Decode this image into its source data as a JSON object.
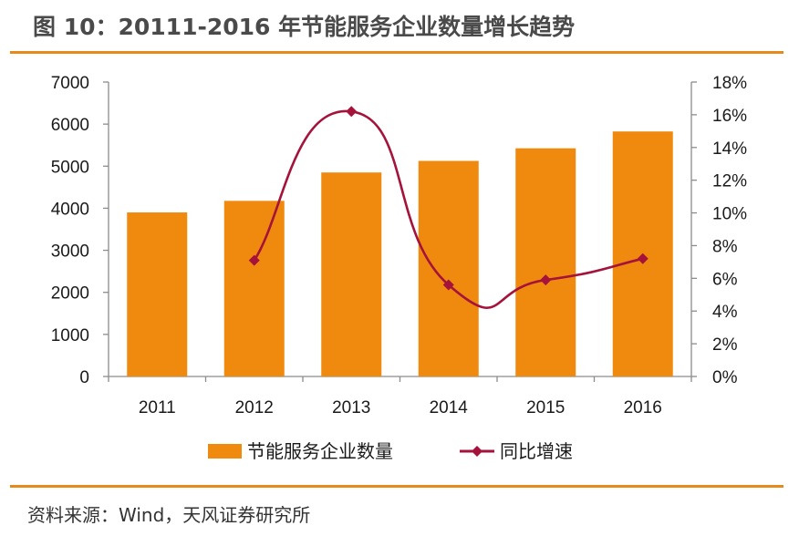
{
  "header": {
    "title": "图 10：20111-2016 年节能服务企业数量增长趋势"
  },
  "footer": {
    "source": "资料来源：Wind，天风证券研究所"
  },
  "chart_data": {
    "type": "bar+line",
    "categories": [
      "2011",
      "2012",
      "2013",
      "2014",
      "2015",
      "2016"
    ],
    "series": [
      {
        "name": "节能服务企业数量",
        "type": "bar",
        "axis": "left",
        "color": "#ef8a0f",
        "values": [
          3900,
          4175,
          4850,
          5125,
          5425,
          5825
        ]
      },
      {
        "name": "同比增速",
        "type": "line",
        "axis": "right",
        "color": "#a5123a",
        "values": [
          null,
          7.1,
          16.2,
          5.6,
          5.9,
          7.2
        ]
      }
    ],
    "y_left": {
      "min": 0,
      "max": 7000,
      "step": 1000,
      "tick_labels": [
        "0",
        "1000",
        "2000",
        "3000",
        "4000",
        "5000",
        "6000",
        "7000"
      ]
    },
    "y_right": {
      "min": 0,
      "max": 18,
      "step": 2,
      "unit": "%",
      "tick_labels": [
        "0%",
        "2%",
        "4%",
        "6%",
        "8%",
        "10%",
        "12%",
        "14%",
        "16%",
        "18%"
      ]
    },
    "legend": {
      "placement": "bottom"
    }
  }
}
